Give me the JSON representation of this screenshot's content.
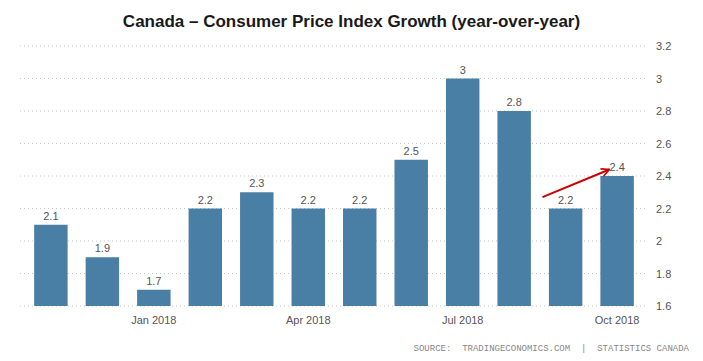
{
  "chart_data": {
    "type": "bar",
    "title": "Canada – Consumer Price Index Growth (year-over-year)",
    "categories": [
      null,
      null,
      "Jan 2018",
      null,
      null,
      "Apr 2018",
      null,
      null,
      "Jul 2018",
      null,
      null,
      "Oct 2018"
    ],
    "values": [
      2.1,
      1.9,
      1.7,
      2.2,
      2.3,
      2.2,
      2.2,
      2.5,
      3.0,
      2.8,
      2.2,
      2.4
    ],
    "color": "#4a7fa5",
    "ylim": [
      1.6,
      3.2
    ],
    "yticks": [
      1.6,
      1.8,
      2.0,
      2.2,
      2.4,
      2.6,
      2.8,
      3.0,
      3.2
    ],
    "grid": true,
    "data_labels": true,
    "source": "SOURCE:  TRADINGECONOMICS.COM  |  STATISTICS CANADA",
    "annotations": [
      {
        "type": "arrow",
        "color": "#cc0000",
        "from": {
          "x": 9.55,
          "y": 2.27
        },
        "to": {
          "x": 10.85,
          "y": 2.44
        }
      }
    ]
  }
}
